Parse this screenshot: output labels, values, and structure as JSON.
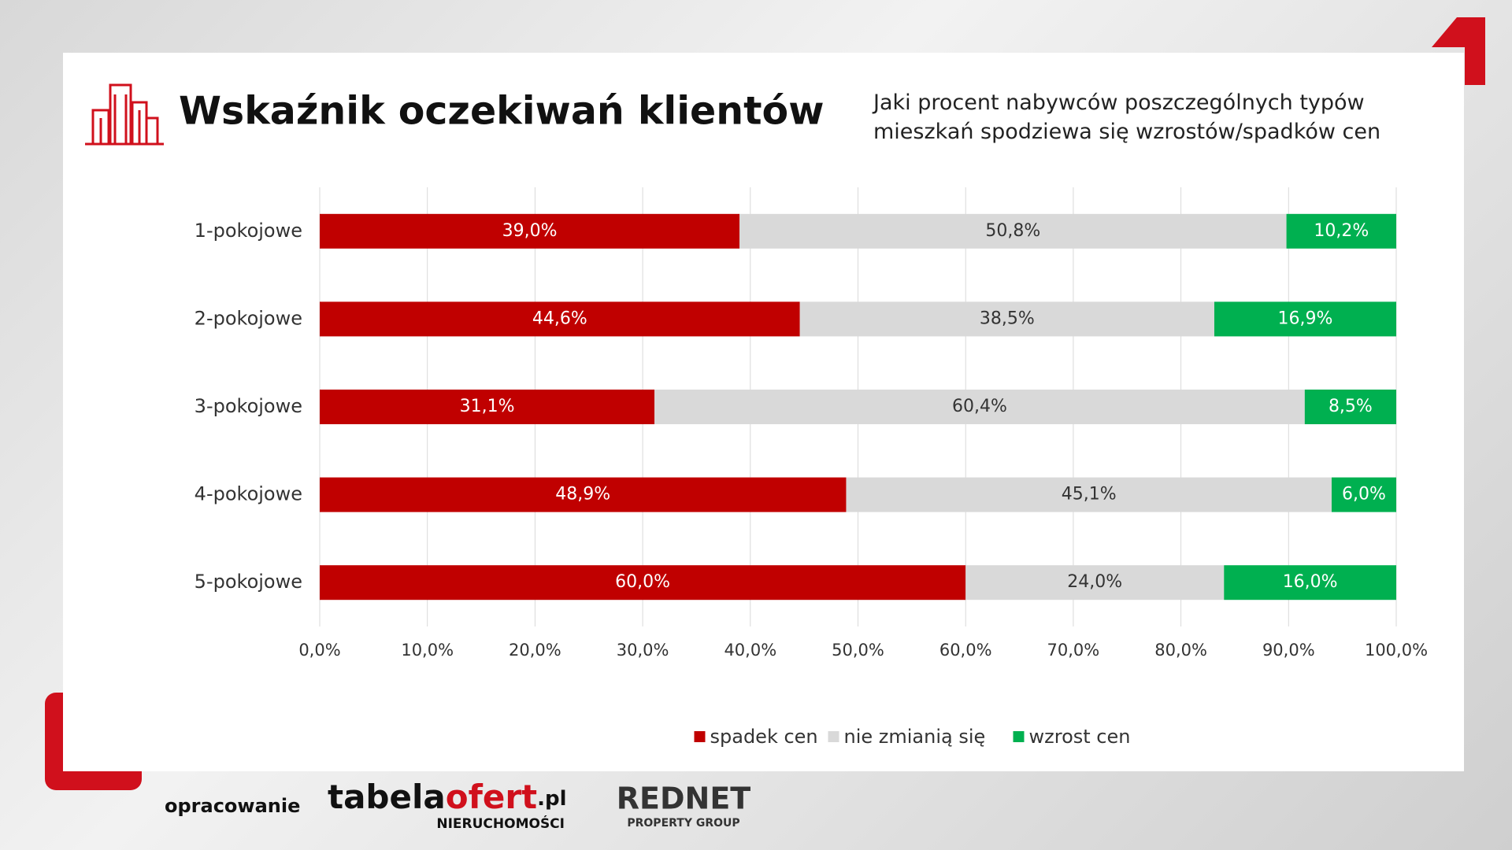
{
  "chart_data": {
    "type": "bar",
    "orientation": "horizontal",
    "stacked": true,
    "title": "Wskaźnik oczekiwań klientów",
    "subtitle": "Jaki procent nabywców poszczególnych typów mieszkań spodziewa się wzrostów/spadków cen",
    "categories": [
      "1-pokojowe",
      "2-pokojowe",
      "3-pokojowe",
      "4-pokojowe",
      "5-pokojowe"
    ],
    "series": [
      {
        "name": "spadek cen",
        "color": "#c00000",
        "values": [
          39.0,
          44.6,
          31.1,
          48.9,
          60.0
        ],
        "value_labels": [
          "39,0%",
          "44,6%",
          "31,1%",
          "48,9%",
          "60,0%"
        ]
      },
      {
        "name": "nie zmianią się",
        "color": "#d9d9d9",
        "values": [
          50.8,
          38.5,
          60.4,
          45.1,
          24.0
        ],
        "value_labels": [
          "50,8%",
          "38,5%",
          "60,4%",
          "45,1%",
          "24,0%"
        ]
      },
      {
        "name": "wzrost cen",
        "color": "#00b050",
        "values": [
          10.2,
          16.9,
          8.5,
          6.0,
          16.0
        ],
        "value_labels": [
          "10,2%",
          "16,9%",
          "8,5%",
          "6,0%",
          "16,0%"
        ]
      }
    ],
    "xlim": [
      0,
      100
    ],
    "xticks": [
      {
        "value": 0,
        "label": "0,0%"
      },
      {
        "value": 10,
        "label": "10,0%"
      },
      {
        "value": 20,
        "label": "20,0%"
      },
      {
        "value": 30,
        "label": "30,0%"
      },
      {
        "value": 40,
        "label": "40,0%"
      },
      {
        "value": 50,
        "label": "50,0%"
      },
      {
        "value": 60,
        "label": "60,0%"
      },
      {
        "value": 70,
        "label": "70,0%"
      },
      {
        "value": 80,
        "label": "80,0%"
      },
      {
        "value": 90,
        "label": "90,0%"
      },
      {
        "value": 100,
        "label": "100,0%"
      }
    ],
    "grid": true,
    "legend": "bottom"
  },
  "footer": {
    "credit": "opracowanie",
    "logo1": [
      "tabela",
      "ofert",
      ".pl"
    ],
    "logo1_sub": "NIERUCHOMOŚCI",
    "logo2": "REDNET",
    "logo2_sub": "PROPERTY GROUP"
  }
}
